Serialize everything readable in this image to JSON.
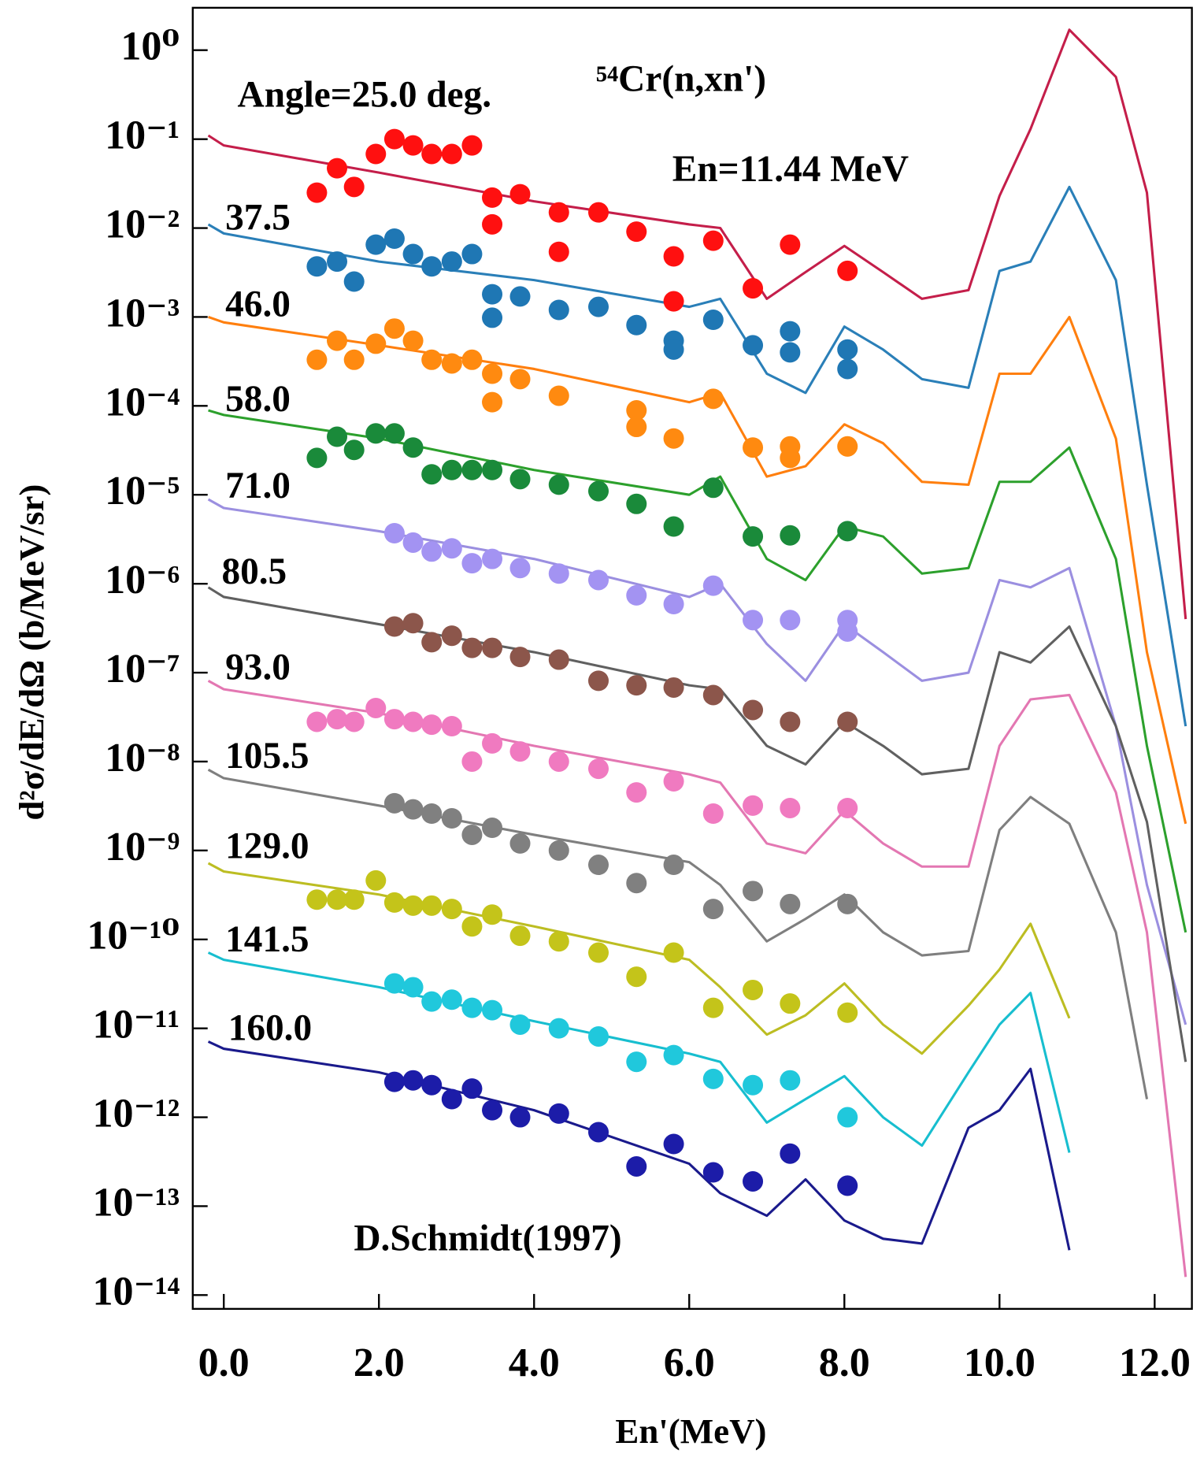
{
  "chart_data": {
    "type": "line",
    "title": "⁵⁴Cr(n,xn')",
    "annotations": [
      "En=11.44 MeV",
      "D.Schmidt(1997)"
    ],
    "xlabel": "En'(MeV)",
    "ylabel": "d²σ/dE/dΩ (b/MeV/sr)",
    "yscale": "log",
    "xlim": [
      -0.4,
      12.48
    ],
    "ylim": [
      7e-15,
      3
    ],
    "xticks": [
      {
        "value": 0,
        "label": "0.0"
      },
      {
        "value": 2,
        "label": "2.0"
      },
      {
        "value": 4,
        "label": "4.0"
      },
      {
        "value": 6,
        "label": "6.0"
      },
      {
        "value": 8,
        "label": "8.0"
      },
      {
        "value": 10,
        "label": "10.0"
      },
      {
        "value": 12,
        "label": "12.0"
      }
    ],
    "yticks": [
      {
        "value": 1,
        "label": "10⁰"
      },
      {
        "value": 0.1,
        "label": "10⁻¹"
      },
      {
        "value": 0.01,
        "label": "10⁻²"
      },
      {
        "value": 0.001,
        "label": "10⁻³"
      },
      {
        "value": 0.0001,
        "label": "10⁻⁴"
      },
      {
        "value": 1e-05,
        "label": "10⁻⁵"
      },
      {
        "value": 1e-06,
        "label": "10⁻⁶"
      },
      {
        "value": 1e-07,
        "label": "10⁻⁷"
      },
      {
        "value": 1e-08,
        "label": "10⁻⁸"
      },
      {
        "value": 1e-09,
        "label": "10⁻⁹"
      },
      {
        "value": 1e-10,
        "label": "10⁻¹⁰"
      },
      {
        "value": 1e-11,
        "label": "10⁻¹¹"
      },
      {
        "value": 1e-12,
        "label": "10⁻¹²"
      },
      {
        "value": 1e-13,
        "label": "10⁻¹³"
      },
      {
        "value": 1e-14,
        "label": "10⁻¹⁴"
      }
    ],
    "x": [
      -0.2,
      0,
      2,
      4,
      6,
      6.4,
      7,
      7.5,
      8,
      8.5,
      9,
      9.6,
      10,
      10.4,
      10.9,
      11.5,
      11.9,
      12.4
    ],
    "series": [
      {
        "name": "Angle=25.0 deg.",
        "color": "#c41e4a",
        "marker_color": "#ff1010",
        "values": [
          0.11,
          0.085,
          0.042,
          0.02,
          0.011,
          0.01,
          0.0016,
          0.0032,
          0.0063,
          0.0032,
          0.0016,
          0.002,
          0.023,
          0.13,
          1.7,
          0.5,
          0.025,
          4e-07
        ],
        "points": {
          "x": [
            1.2,
            1.46,
            1.68,
            1.96,
            2.2,
            2.44,
            2.68,
            2.94,
            3.2,
            3.46,
            3.46,
            3.82,
            4.32,
            4.32,
            4.83,
            5.32,
            5.8,
            5.8,
            6.31,
            6.82,
            7.3,
            8.04
          ],
          "values": [
            0.025,
            0.047,
            0.029,
            0.068,
            0.1,
            0.085,
            0.068,
            0.068,
            0.085,
            0.022,
            0.011,
            0.024,
            0.015,
            0.0054,
            0.015,
            0.0091,
            0.0048,
            0.0015,
            0.0072,
            0.0021,
            0.0065,
            0.0033
          ]
        }
      },
      {
        "name": "37.5",
        "color": "#2a7fb8",
        "marker_color": "#1f77b4",
        "values": [
          0.011,
          0.0087,
          0.0042,
          0.0026,
          0.0013,
          0.0016,
          0.00023,
          0.00014,
          0.00078,
          0.00043,
          0.0002,
          0.00016,
          0.0033,
          0.0042,
          0.029,
          0.0026,
          1.3e-05,
          2.5e-08
        ],
        "points": {
          "x": [
            1.2,
            1.46,
            1.68,
            1.96,
            2.2,
            2.44,
            2.68,
            2.94,
            3.2,
            3.46,
            3.46,
            3.82,
            4.32,
            4.83,
            5.32,
            5.8,
            5.8,
            6.31,
            6.82,
            7.3,
            7.3,
            8.04,
            8.04
          ],
          "values": [
            0.0037,
            0.0042,
            0.0025,
            0.0065,
            0.0076,
            0.0051,
            0.0037,
            0.0042,
            0.0051,
            0.0018,
            0.00098,
            0.0017,
            0.0012,
            0.0013,
            0.00081,
            0.00054,
            0.00043,
            0.00093,
            0.00048,
            0.00069,
            0.0004,
            0.00043,
            0.00026
          ]
        }
      },
      {
        "name": "46.0",
        "color": "#ff7f0e",
        "marker_color": "#ff8a10",
        "values": [
          0.001,
          0.00087,
          0.00048,
          0.00026,
          0.00011,
          0.00014,
          1.6e-05,
          2.1e-05,
          6.2e-05,
          3.8e-05,
          1.4e-05,
          1.3e-05,
          0.00023,
          0.00023,
          0.001,
          4.3e-05,
          1.7e-07,
          2e-09
        ],
        "points": {
          "x": [
            1.2,
            1.46,
            1.68,
            1.96,
            2.2,
            2.44,
            2.68,
            2.94,
            3.2,
            3.46,
            3.46,
            3.82,
            4.32,
            5.32,
            5.32,
            5.8,
            6.31,
            6.82,
            7.3,
            7.3,
            8.04
          ],
          "values": [
            0.00033,
            0.00054,
            0.00033,
            0.0005,
            0.00074,
            0.00054,
            0.00033,
            0.0003,
            0.00033,
            0.00023,
            0.00011,
            0.0002,
            0.00013,
            8.9e-05,
            5.8e-05,
            4.3e-05,
            0.00012,
            3.4e-05,
            3.5e-05,
            2.6e-05,
            3.5e-05
          ]
        }
      },
      {
        "name": "58.0",
        "color": "#2ca02c",
        "marker_color": "#1a8a3a",
        "values": [
          8.9e-05,
          7.9e-05,
          4.3e-05,
          1.9e-05,
          1e-05,
          1.6e-05,
          1.9e-06,
          1.1e-06,
          4.4e-06,
          3.4e-06,
          1.3e-06,
          1.5e-06,
          1.4e-05,
          1.4e-05,
          3.4e-05,
          1.9e-06,
          1.5e-08,
          1.2e-10
        ],
        "points": {
          "x": [
            1.2,
            1.46,
            1.68,
            1.96,
            2.2,
            2.44,
            2.68,
            2.94,
            3.2,
            3.46,
            3.82,
            4.32,
            4.83,
            5.32,
            5.8,
            6.31,
            6.82,
            7.3,
            8.04
          ],
          "values": [
            2.6e-05,
            4.5e-05,
            3.2e-05,
            4.9e-05,
            4.9e-05,
            3.4e-05,
            1.7e-05,
            1.9e-05,
            1.9e-05,
            1.9e-05,
            1.5e-05,
            1.3e-05,
            1.1e-05,
            7.9e-06,
            4.4e-06,
            1.2e-05,
            3.4e-06,
            3.5e-06,
            3.9e-06
          ]
        }
      },
      {
        "name": "71.0",
        "color": "#9b8fe0",
        "marker_color": "#a393f2",
        "values": [
          8.9e-06,
          7.1e-06,
          3.9e-06,
          1.9e-06,
          7.1e-07,
          1e-06,
          2.1e-07,
          8.1e-08,
          3.5e-07,
          1.7e-07,
          8.1e-08,
          1e-07,
          1.1e-06,
          9.1e-07,
          1.5e-06,
          2.5e-08,
          4.1e-10,
          1.1e-11
        ],
        "points": {
          "x": [
            2.2,
            2.44,
            2.68,
            2.94,
            3.2,
            3.46,
            3.82,
            4.32,
            4.83,
            5.32,
            5.8,
            6.31,
            6.82,
            7.3,
            8.04,
            8.04
          ],
          "values": [
            3.7e-06,
            2.9e-06,
            2.3e-06,
            2.5e-06,
            1.7e-06,
            1.9e-06,
            1.5e-06,
            1.3e-06,
            1.1e-06,
            7.4e-07,
            5.9e-07,
            9.5e-07,
            3.9e-07,
            3.9e-07,
            3.9e-07,
            2.9e-07
          ]
        }
      },
      {
        "name": "80.5",
        "color": "#606060",
        "marker_color": "#8c564b",
        "values": [
          9.1e-07,
          7.1e-07,
          3.5e-07,
          1.7e-07,
          7.2e-08,
          6.5e-08,
          1.5e-08,
          9.3e-09,
          2.8e-08,
          1.5e-08,
          7.2e-09,
          8.3e-09,
          1.7e-07,
          1.3e-07,
          3.3e-07,
          2.5e-08,
          2.1e-09,
          4.2e-12
        ],
        "points": {
          "x": [
            2.2,
            2.44,
            2.68,
            2.94,
            3.2,
            3.46,
            3.82,
            4.32,
            4.83,
            5.32,
            5.8,
            6.31,
            6.82,
            7.3,
            8.04
          ],
          "values": [
            3.3e-07,
            3.6e-07,
            2.2e-07,
            2.6e-07,
            1.9e-07,
            1.9e-07,
            1.5e-07,
            1.4e-07,
            8.1e-08,
            7.2e-08,
            6.8e-08,
            5.6e-08,
            3.8e-08,
            2.8e-08,
            2.8e-08
          ]
        }
      },
      {
        "name": "93.0",
        "color": "#e377b2",
        "marker_color": "#f07ac0",
        "values": [
          8.1e-08,
          6.5e-08,
          3.5e-08,
          1.5e-08,
          7.2e-09,
          5.8e-09,
          1.2e-09,
          9.3e-10,
          2.8e-09,
          1.2e-09,
          6.6e-10,
          6.6e-10,
          1.5e-08,
          5e-08,
          5.6e-08,
          4.5e-09,
          1.2e-10,
          1.6e-14
        ],
        "points": {
          "x": [
            1.2,
            1.46,
            1.68,
            1.96,
            2.2,
            2.44,
            2.68,
            2.94,
            3.2,
            3.46,
            3.82,
            4.32,
            4.83,
            5.32,
            5.8,
            6.31,
            6.82,
            7.3,
            8.04
          ],
          "values": [
            2.8e-08,
            3e-08,
            2.8e-08,
            4e-08,
            3e-08,
            2.8e-08,
            2.6e-08,
            2.5e-08,
            1e-08,
            1.6e-08,
            1.3e-08,
            1e-08,
            8.3e-09,
            4.5e-09,
            6e-09,
            2.6e-09,
            3.2e-09,
            3e-09,
            3e-09
          ]
        }
      },
      {
        "name": "105.5",
        "color": "#7f7f7f",
        "marker_color": "#808080",
        "values": [
          8.1e-09,
          6.5e-09,
          3.2e-09,
          1.5e-09,
          7.4e-10,
          4.1e-10,
          9.5e-11,
          1.7e-10,
          3.2e-10,
          1.2e-10,
          6.6e-11,
          7.4e-11,
          1.7e-09,
          4e-09,
          2e-09,
          1.2e-10,
          1.6e-12,
          null
        ],
        "points": {
          "x": [
            2.2,
            2.44,
            2.68,
            2.94,
            3.2,
            3.46,
            3.82,
            4.32,
            4.83,
            5.32,
            5.8,
            6.31,
            6.82,
            7.3,
            8.04
          ],
          "values": [
            3.4e-09,
            2.9e-09,
            2.6e-09,
            2.3e-09,
            1.5e-09,
            1.8e-09,
            1.2e-09,
            1e-09,
            6.9e-10,
            4.3e-10,
            6.9e-10,
            2.2e-10,
            3.5e-10,
            2.5e-10,
            2.5e-10
          ]
        }
      },
      {
        "name": "129.0",
        "color": "#bcbd22",
        "marker_color": "#c4c41a",
        "values": [
          7.2e-10,
          5.8e-10,
          3.2e-10,
          1.4e-10,
          5.9e-11,
          2.9e-11,
          8.5e-12,
          1.4e-11,
          3.2e-11,
          1.1e-11,
          5.2e-12,
          1.8e-11,
          4.6e-11,
          1.5e-10,
          1.3e-11,
          null,
          null,
          null
        ],
        "points": {
          "x": [
            1.2,
            1.46,
            1.68,
            1.96,
            2.2,
            2.44,
            2.68,
            2.94,
            3.2,
            3.46,
            3.82,
            4.32,
            4.83,
            5.32,
            5.8,
            6.31,
            6.82,
            7.3,
            8.04
          ],
          "values": [
            2.8e-10,
            2.8e-10,
            2.8e-10,
            4.6e-10,
            2.6e-10,
            2.4e-10,
            2.4e-10,
            2.2e-10,
            1.4e-10,
            1.9e-10,
            1.1e-10,
            9.5e-11,
            7.1e-11,
            3.8e-11,
            7.1e-11,
            1.7e-11,
            2.7e-11,
            1.9e-11,
            1.5e-11
          ]
        }
      },
      {
        "name": "141.5",
        "color": "#17becf",
        "marker_color": "#20c8dc",
        "values": [
          7.1e-11,
          5.9e-11,
          2.9e-11,
          1.2e-11,
          5.2e-12,
          4.2e-12,
          8.7e-13,
          1.6e-12,
          2.9e-12,
          1e-12,
          4.8e-13,
          3.2e-12,
          1.1e-11,
          2.5e-11,
          4e-13,
          null,
          null,
          null
        ],
        "points": {
          "x": [
            2.2,
            2.44,
            2.68,
            2.94,
            3.2,
            3.46,
            3.82,
            4.32,
            4.83,
            5.32,
            5.8,
            6.31,
            6.82,
            7.3,
            8.04
          ],
          "values": [
            3.2e-11,
            2.9e-11,
            2e-11,
            2.1e-11,
            1.7e-11,
            1.6e-11,
            1.1e-11,
            1e-11,
            8.1e-12,
            4.2e-12,
            5e-12,
            2.7e-12,
            2.3e-12,
            2.6e-12,
            1e-12
          ]
        }
      },
      {
        "name": "160.0",
        "color": "#1a1a8c",
        "marker_color": "#1c1ca8",
        "values": [
          7.1e-12,
          5.9e-12,
          3.2e-12,
          1.2e-12,
          3e-13,
          1.4e-13,
          7.8e-14,
          2e-13,
          6.9e-14,
          4.3e-14,
          3.8e-14,
          7.6e-13,
          1.2e-12,
          3.5e-12,
          3.2e-14,
          null,
          null,
          null
        ],
        "points": {
          "x": [
            2.2,
            2.44,
            2.68,
            2.94,
            3.2,
            3.46,
            3.82,
            4.32,
            4.83,
            5.32,
            5.8,
            6.31,
            6.82,
            7.3,
            8.04
          ],
          "values": [
            2.5e-12,
            2.6e-12,
            2.3e-12,
            1.6e-12,
            2.1e-12,
            1.2e-12,
            1e-12,
            1.1e-12,
            6.8e-13,
            2.8e-13,
            5e-13,
            2.4e-13,
            1.9e-13,
            3.9e-13,
            1.7e-13
          ]
        }
      }
    ]
  }
}
